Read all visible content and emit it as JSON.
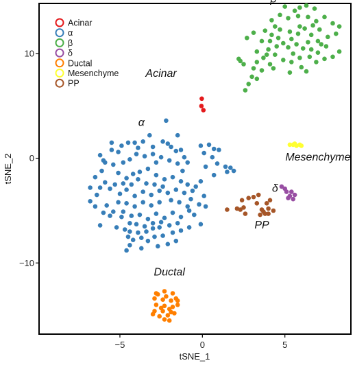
{
  "chart_data": {
    "type": "scatter",
    "xlabel": "tSNE_1",
    "ylabel": "tSNE_2",
    "xlim": [
      -9.9,
      9.0
    ],
    "ylim": [
      -16.8,
      14.8
    ],
    "xticks": [
      -5,
      0,
      5
    ],
    "yticks": [
      -10,
      0,
      10
    ],
    "xtick_labels": [
      "−5",
      "0",
      "5"
    ],
    "ytick_labels": [
      "−10",
      "0",
      "10"
    ],
    "grid": false,
    "legend_position": "top-left",
    "series": [
      {
        "name": "Acinar",
        "color": "#e41a1c",
        "points": [
          [
            -0.04,
            5.7
          ],
          [
            -0.06,
            5.0
          ],
          [
            0.06,
            4.6
          ]
        ]
      },
      {
        "name": "α",
        "color": "#377eb8",
        "points": [
          [
            -2.2,
            3.6
          ],
          [
            -1.5,
            2.2
          ],
          [
            -0.1,
            1.2
          ],
          [
            0.4,
            1.3
          ],
          [
            0.7,
            0.9
          ],
          [
            1.0,
            0.8
          ],
          [
            0.1,
            0.5
          ],
          [
            0.6,
            0.1
          ],
          [
            0.9,
            -0.5
          ],
          [
            1.4,
            -0.8
          ],
          [
            1.7,
            -0.9
          ],
          [
            1.9,
            -1.2
          ],
          [
            1.5,
            -1.3
          ],
          [
            0.2,
            -0.8
          ],
          [
            0.7,
            -1.6
          ],
          [
            -0.1,
            -2.2
          ],
          [
            0.1,
            -3.6
          ],
          [
            -0.2,
            -4.4
          ],
          [
            0.2,
            -4.6
          ],
          [
            -0.1,
            -6.3
          ],
          [
            -0.5,
            -5.4
          ],
          [
            -0.8,
            -6.6
          ],
          [
            -1.3,
            -6.9
          ],
          [
            -1.8,
            -7.1
          ],
          [
            -2.4,
            -7.4
          ],
          [
            -2.6,
            -6.6
          ],
          [
            -3.0,
            -6.7
          ],
          [
            -3.4,
            -7.0
          ],
          [
            -3.7,
            -7.6
          ],
          [
            -4.2,
            -7.8
          ],
          [
            -4.4,
            -8.3
          ],
          [
            -4.6,
            -8.8
          ],
          [
            -3.7,
            -8.6
          ],
          [
            -4.5,
            -7.5
          ],
          [
            -4.7,
            -6.8
          ],
          [
            -5.2,
            -6.6
          ],
          [
            -4.4,
            -6.2
          ],
          [
            -4.9,
            -5.6
          ],
          [
            -5.6,
            -5.5
          ],
          [
            -5.4,
            -5.1
          ],
          [
            -6.2,
            -6.4
          ],
          [
            -6.0,
            -5.2
          ],
          [
            -5.8,
            -4.5
          ],
          [
            -6.5,
            -4.6
          ],
          [
            -6.8,
            -4.1
          ],
          [
            -6.4,
            -3.5
          ],
          [
            -6.8,
            -2.8
          ],
          [
            -6.2,
            -2.8
          ],
          [
            -5.6,
            -2.9
          ],
          [
            -5.9,
            -2.3
          ],
          [
            -6.5,
            -1.8
          ],
          [
            -6.1,
            -1.2
          ],
          [
            -5.9,
            -0.4
          ],
          [
            -6.2,
            0.3
          ],
          [
            -5.4,
            -0.6
          ],
          [
            -5.5,
            0.8
          ],
          [
            -5.1,
            0.6
          ],
          [
            -4.9,
            1.2
          ],
          [
            -4.5,
            1.5
          ],
          [
            -4.1,
            1.5
          ],
          [
            -3.6,
            1.6
          ],
          [
            -3.0,
            1.1
          ],
          [
            -2.4,
            1.6
          ],
          [
            -2.1,
            1.4
          ],
          [
            -1.9,
            1.1
          ],
          [
            -1.6,
            0.7
          ],
          [
            -1.3,
            0.8
          ],
          [
            -1.1,
            0.1
          ],
          [
            -0.9,
            -0.4
          ],
          [
            -1.5,
            -0.5
          ],
          [
            -2.0,
            -0.2
          ],
          [
            -2.5,
            0.1
          ],
          [
            -3.0,
            0.4
          ],
          [
            -3.5,
            0.2
          ],
          [
            -4.0,
            0.4
          ],
          [
            -4.4,
            -0.1
          ],
          [
            -4.8,
            -0.4
          ],
          [
            -5.1,
            -1.4
          ],
          [
            -4.6,
            -1.9
          ],
          [
            -4.2,
            -1.5
          ],
          [
            -3.8,
            -1.3
          ],
          [
            -3.3,
            -1.0
          ],
          [
            -2.8,
            -1.6
          ],
          [
            -2.3,
            -2.0
          ],
          [
            -1.8,
            -1.8
          ],
          [
            -1.3,
            -2.2
          ],
          [
            -0.9,
            -2.5
          ],
          [
            -0.6,
            -3.1
          ],
          [
            -1.1,
            -3.3
          ],
          [
            -1.6,
            -3.0
          ],
          [
            -2.1,
            -3.3
          ],
          [
            -2.6,
            -3.1
          ],
          [
            -3.1,
            -3.5
          ],
          [
            -3.6,
            -3.2
          ],
          [
            -4.1,
            -3.6
          ],
          [
            -4.6,
            -3.0
          ],
          [
            -5.0,
            -3.4
          ],
          [
            -5.3,
            -2.5
          ],
          [
            -4.8,
            -2.4
          ],
          [
            -4.3,
            -2.5
          ],
          [
            -3.9,
            -2.0
          ],
          [
            -3.4,
            -2.4
          ],
          [
            -2.9,
            -2.5
          ],
          [
            -2.4,
            -2.7
          ],
          [
            -1.9,
            -4.0
          ],
          [
            -1.4,
            -4.2
          ],
          [
            -0.9,
            -4.6
          ],
          [
            -0.7,
            -3.9
          ],
          [
            -0.4,
            -2.7
          ],
          [
            -1.2,
            -1.2
          ],
          [
            -2.6,
            -4.2
          ],
          [
            -3.1,
            -4.5
          ],
          [
            -3.6,
            -4.2
          ],
          [
            -4.1,
            -4.6
          ],
          [
            -4.6,
            -4.3
          ],
          [
            -5.1,
            -4.2
          ],
          [
            -4.8,
            -5.1
          ],
          [
            -4.3,
            -5.5
          ],
          [
            -3.8,
            -5.4
          ],
          [
            -3.3,
            -5.8
          ],
          [
            -2.8,
            -5.3
          ],
          [
            -2.3,
            -5.7
          ],
          [
            -1.8,
            -5.2
          ],
          [
            -1.3,
            -5.6
          ],
          [
            -0.8,
            -5.0
          ],
          [
            -1.5,
            -6.2
          ],
          [
            -2.0,
            -6.4
          ],
          [
            -2.5,
            -6.1
          ],
          [
            -3.0,
            -6.2
          ],
          [
            -3.5,
            -6.5
          ],
          [
            -4.0,
            -6.3
          ],
          [
            -4.4,
            -7.0
          ],
          [
            -3.9,
            -7.1
          ],
          [
            -3.3,
            -7.9
          ],
          [
            -2.9,
            -7.5
          ],
          [
            -1.6,
            -7.9
          ],
          [
            -2.1,
            -8.2
          ],
          [
            -2.7,
            -8.4
          ],
          [
            -5.5,
            1.5
          ],
          [
            -6.0,
            -0.2
          ],
          [
            -3.2,
            2.2
          ],
          [
            -2.8,
            -0.4
          ],
          [
            -3.9,
            1.0
          ]
        ]
      },
      {
        "name": "β",
        "color": "#4daf4a",
        "points": [
          [
            2.6,
            6.5
          ],
          [
            2.8,
            7.1
          ],
          [
            3.0,
            7.8
          ],
          [
            3.3,
            7.6
          ],
          [
            3.6,
            8.4
          ],
          [
            3.1,
            8.6
          ],
          [
            2.5,
            9.0
          ],
          [
            2.3,
            9.3
          ],
          [
            2.2,
            9.5
          ],
          [
            3.3,
            9.2
          ],
          [
            3.7,
            9.6
          ],
          [
            4.1,
            9.0
          ],
          [
            4.4,
            9.9
          ],
          [
            4.9,
            9.4
          ],
          [
            5.4,
            9.2
          ],
          [
            6.0,
            8.7
          ],
          [
            6.3,
            8.3
          ],
          [
            5.3,
            8.2
          ],
          [
            5.9,
            9.6
          ],
          [
            6.5,
            9.7
          ],
          [
            7.0,
            10.1
          ],
          [
            7.4,
            9.5
          ],
          [
            7.9,
            9.7
          ],
          [
            8.3,
            10.2
          ],
          [
            7.5,
            10.7
          ],
          [
            7.0,
            11.2
          ],
          [
            6.6,
            10.4
          ],
          [
            6.1,
            10.5
          ],
          [
            5.7,
            10.9
          ],
          [
            5.4,
            11.4
          ],
          [
            4.9,
            11.0
          ],
          [
            4.6,
            11.5
          ],
          [
            4.1,
            11.2
          ],
          [
            3.6,
            11.2
          ],
          [
            3.8,
            12.2
          ],
          [
            4.2,
            11.8
          ],
          [
            4.7,
            12.3
          ],
          [
            5.3,
            12.1
          ],
          [
            5.8,
            11.9
          ],
          [
            6.2,
            12.4
          ],
          [
            6.6,
            11.8
          ],
          [
            7.1,
            12.3
          ],
          [
            7.6,
            11.6
          ],
          [
            8.1,
            11.9
          ],
          [
            8.3,
            12.6
          ],
          [
            7.9,
            12.9
          ],
          [
            7.4,
            13.5
          ],
          [
            6.9,
            13.1
          ],
          [
            6.4,
            13.5
          ],
          [
            5.8,
            13.6
          ],
          [
            5.2,
            13.4
          ],
          [
            4.7,
            13.7
          ],
          [
            4.2,
            13.2
          ],
          [
            5.6,
            14.1
          ],
          [
            5.0,
            14.5
          ],
          [
            5.9,
            14.4
          ],
          [
            6.3,
            14.6
          ],
          [
            6.8,
            14.3
          ],
          [
            5.5,
            10.0
          ],
          [
            4.0,
            10.4
          ],
          [
            3.3,
            10.2
          ],
          [
            6.9,
            9.2
          ],
          [
            5.2,
            10.6
          ],
          [
            4.4,
            12.6
          ],
          [
            6.4,
            11.1
          ],
          [
            7.2,
            10.9
          ],
          [
            6.7,
            12.7
          ],
          [
            3.9,
            9.9
          ],
          [
            4.5,
            10.7
          ],
          [
            5.9,
            12.6
          ],
          [
            3.1,
            12.0
          ],
          [
            2.7,
            11.5
          ],
          [
            4.3,
            8.6
          ]
        ]
      },
      {
        "name": "δ",
        "color": "#984ea3",
        "points": [
          [
            4.8,
            -2.7
          ],
          [
            5.0,
            -2.9
          ],
          [
            5.1,
            -3.2
          ],
          [
            5.3,
            -3.6
          ],
          [
            5.5,
            -3.9
          ],
          [
            5.6,
            -3.5
          ],
          [
            5.4,
            -3.2
          ],
          [
            5.2,
            -3.8
          ]
        ]
      },
      {
        "name": "Ductal",
        "color": "#ff7f00",
        "points": [
          [
            -2.8,
            -12.9
          ],
          [
            -2.3,
            -12.7
          ],
          [
            -1.8,
            -12.9
          ],
          [
            -2.9,
            -13.4
          ],
          [
            -2.4,
            -13.5
          ],
          [
            -1.9,
            -13.6
          ],
          [
            -1.5,
            -13.6
          ],
          [
            -2.8,
            -14.0
          ],
          [
            -2.3,
            -14.1
          ],
          [
            -1.8,
            -14.2
          ],
          [
            -1.5,
            -14.0
          ],
          [
            -2.9,
            -14.6
          ],
          [
            -2.4,
            -14.6
          ],
          [
            -1.9,
            -14.7
          ],
          [
            -2.6,
            -15.1
          ],
          [
            -2.1,
            -15.0
          ],
          [
            -2.0,
            -15.5
          ],
          [
            -3.0,
            -14.9
          ],
          [
            -2.7,
            -13.0
          ],
          [
            -2.2,
            -13.2
          ],
          [
            -1.6,
            -13.4
          ],
          [
            -2.5,
            -14.3
          ],
          [
            -2.0,
            -14.4
          ],
          [
            -1.7,
            -14.8
          ],
          [
            -2.3,
            -15.4
          ]
        ]
      },
      {
        "name": "Mesenchyme",
        "color": "#ffff33",
        "points": [
          [
            5.3,
            1.3
          ],
          [
            5.5,
            1.3
          ],
          [
            5.7,
            1.2
          ],
          [
            5.9,
            1.3
          ],
          [
            6.0,
            1.2
          ],
          [
            5.6,
            1.4
          ]
        ]
      },
      {
        "name": "PP",
        "color": "#a65628",
        "points": [
          [
            1.5,
            -4.9
          ],
          [
            2.1,
            -4.8
          ],
          [
            2.4,
            -4.0
          ],
          [
            2.6,
            -5.3
          ],
          [
            2.8,
            -3.8
          ],
          [
            3.1,
            -3.7
          ],
          [
            3.4,
            -3.5
          ],
          [
            3.3,
            -4.3
          ],
          [
            3.6,
            -4.9
          ],
          [
            3.8,
            -5.3
          ],
          [
            3.9,
            -4.3
          ],
          [
            4.1,
            -4.0
          ],
          [
            4.0,
            -5.3
          ],
          [
            4.3,
            -5.0
          ],
          [
            3.7,
            -5.1
          ],
          [
            4.0,
            -4.8
          ],
          [
            3.5,
            -5.4
          ],
          [
            2.5,
            -4.7
          ],
          [
            2.3,
            -4.9
          ]
        ]
      }
    ],
    "annotations": [
      {
        "text": "Acinar",
        "x": -2.5,
        "y": 7.8
      },
      {
        "text": "α",
        "x": -3.7,
        "y": 3.1
      },
      {
        "text": "β",
        "x": 4.3,
        "y": 14.9
      },
      {
        "text": "Mesenchyme",
        "x": 7.0,
        "y": -0.2
      },
      {
        "text": "δ",
        "x": 4.4,
        "y": -3.2
      },
      {
        "text": "PP",
        "x": 3.6,
        "y": -6.7
      },
      {
        "text": "Ductal",
        "x": -2.0,
        "y": -11.2
      }
    ]
  }
}
